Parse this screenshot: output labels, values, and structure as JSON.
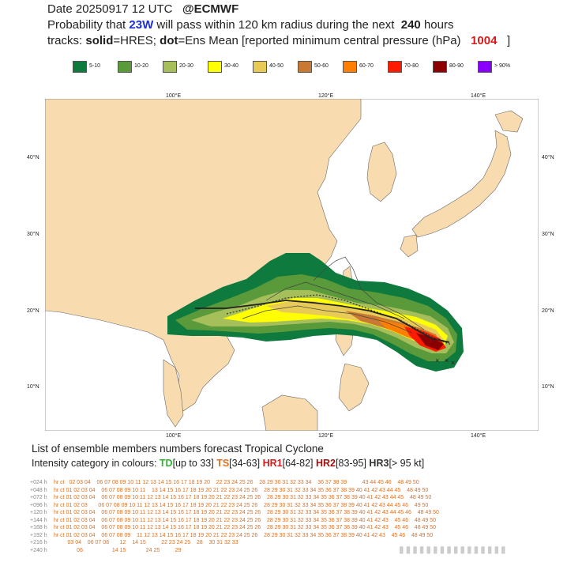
{
  "header": {
    "line1_prefix": "Date 20250917 12 UTC",
    "line1_brand": "@ECMWF",
    "line2_a": "Probability that",
    "line2_storm": "23W",
    "line2_b": "will pass within 120 km radius during the next",
    "line2_hours": "240",
    "line2_c": "hours",
    "line3_a": "tracks:",
    "line3_solid": "solid",
    "line3_b": "=HRES;",
    "line3_dot": "dot",
    "line3_c": "=Ens Mean [reported minimum central pressure (hPa)",
    "line3_pressure": "1004",
    "line3_end": "]"
  },
  "legend": [
    {
      "label": "5-10",
      "color": "#0f7a3e"
    },
    {
      "label": "10-20",
      "color": "#5a9a3a"
    },
    {
      "label": "20-30",
      "color": "#a7bf5a"
    },
    {
      "label": "30-40",
      "color": "#ffff00"
    },
    {
      "label": "40-50",
      "color": "#e8cb57"
    },
    {
      "label": "50-60",
      "color": "#c87a35"
    },
    {
      "label": "60-70",
      "color": "#ff7f00"
    },
    {
      "label": "70-80",
      "color": "#ff1a00"
    },
    {
      "label": "80-90",
      "color": "#8b0000"
    },
    {
      "label": "> 90%",
      "color": "#8a00ff"
    }
  ],
  "map": {
    "lon_labels": [
      "100°E",
      "120°E",
      "140°E"
    ],
    "lat_labels": [
      "40°N",
      "30°N",
      "20°N",
      "10°N"
    ]
  },
  "bottom": {
    "title": "List of ensemble members numbers forecast Tropical Cyclone",
    "intensity_prefix": "Intensity category in colours:",
    "td": "TD",
    "td_range": "[up to 33]",
    "ts": "TS",
    "ts_range": "[34-63]",
    "hr1": "HR1",
    "hr1_range": "[64-82]",
    "hr2": "HR2",
    "hr2_range": "[83-95]",
    "hr3": "HR3",
    "hr3_range": "[> 95 kt]"
  },
  "table": {
    "rows": [
      {
        "lead": "+024 h",
        "cells": "hr ct   02 03 04    06 07 08 09 10 11 12 13 14 15 16 17 18 19 20    22 23 24 25 26    28 29 30 31 32 33 34    36 37 38 39          43 44 45 46    48 49 50"
      },
      {
        "lead": "+048 h",
        "cells": "hr ct 01 02 03 04    06 07 08 09 10 11    13 14 15 16 17 18 19 20 21 22 23 24 25 26    28 29 30 31 32 33 34 35 36 37 38 39 40 41 42 43 44 45    48 49 50"
      },
      {
        "lead": "+072 h",
        "cells": "hr ct 01 02 03 04    06 07 08 09 10 11 12 13 14 15 16 17 18 19 20 21 22 23 24 25 26    28 29 30 31 32 33 34 35 36 37 38 39 40 41 42 43 44 45    48 49 50"
      },
      {
        "lead": "+096 h",
        "cells": "hr ct 01 02 03       06 07 08 09 10 11 12 13 14 15 16 17 18 19 20 21 22 23 24 25 26    28 29 30 31 32 33 34 35 36 37 38 39 40 41 42 43 44 45 46    49 50"
      },
      {
        "lead": "+120 h",
        "cells": "hr ct 01 02 03 04    06 07 08 09 10 11 12 13 14 15 16 17 18 19 20 21 22 23 24 25 26    28 29 30 31 32 33 34 35 36 37 38 39 40 41 42 43 44 45 46    48 49 50"
      },
      {
        "lead": "+144 h",
        "cells": "hr ct 01 02 03 04    06 07 08 09 10 11 12 13 14 15 16 17 18 19 20 21 22 23 24 25 26    28 29 30 31 32 33 34 35 36 37 38 39 40 41 42 43    45 46    48 49 50"
      },
      {
        "lead": "+168 h",
        "cells": "hr ct 01 02 03 04    06 07 08 09 10 11 12 13 14 15 16 17 18 19 20 21 22 23 24 25 26    28 29 30 31 32 33 34 35 36 37 38 39 40 41 42 43    45 46    48 49 50"
      },
      {
        "lead": "+192 h",
        "cells": "hr ct 01 02 03 04    06 07 08 09    11 12 13 14 15 16 17 18 19 20 21 22 23 24 25 26    28 29 30 31 32 33 34 35 36 37 38 39 40 41 42 43    45 46    48 49 50"
      },
      {
        "lead": "+216 h",
        "cells": "         03 04    06 07 08       12    14 15          22 23 24 25    28    30 31 32 33"
      },
      {
        "lead": "+240 h",
        "cells": "               06                   14 15             24 25          29"
      }
    ]
  },
  "watermark": "▮▮▮▮▮▮▮▮▮▮▮▮▮▮▮▮"
}
